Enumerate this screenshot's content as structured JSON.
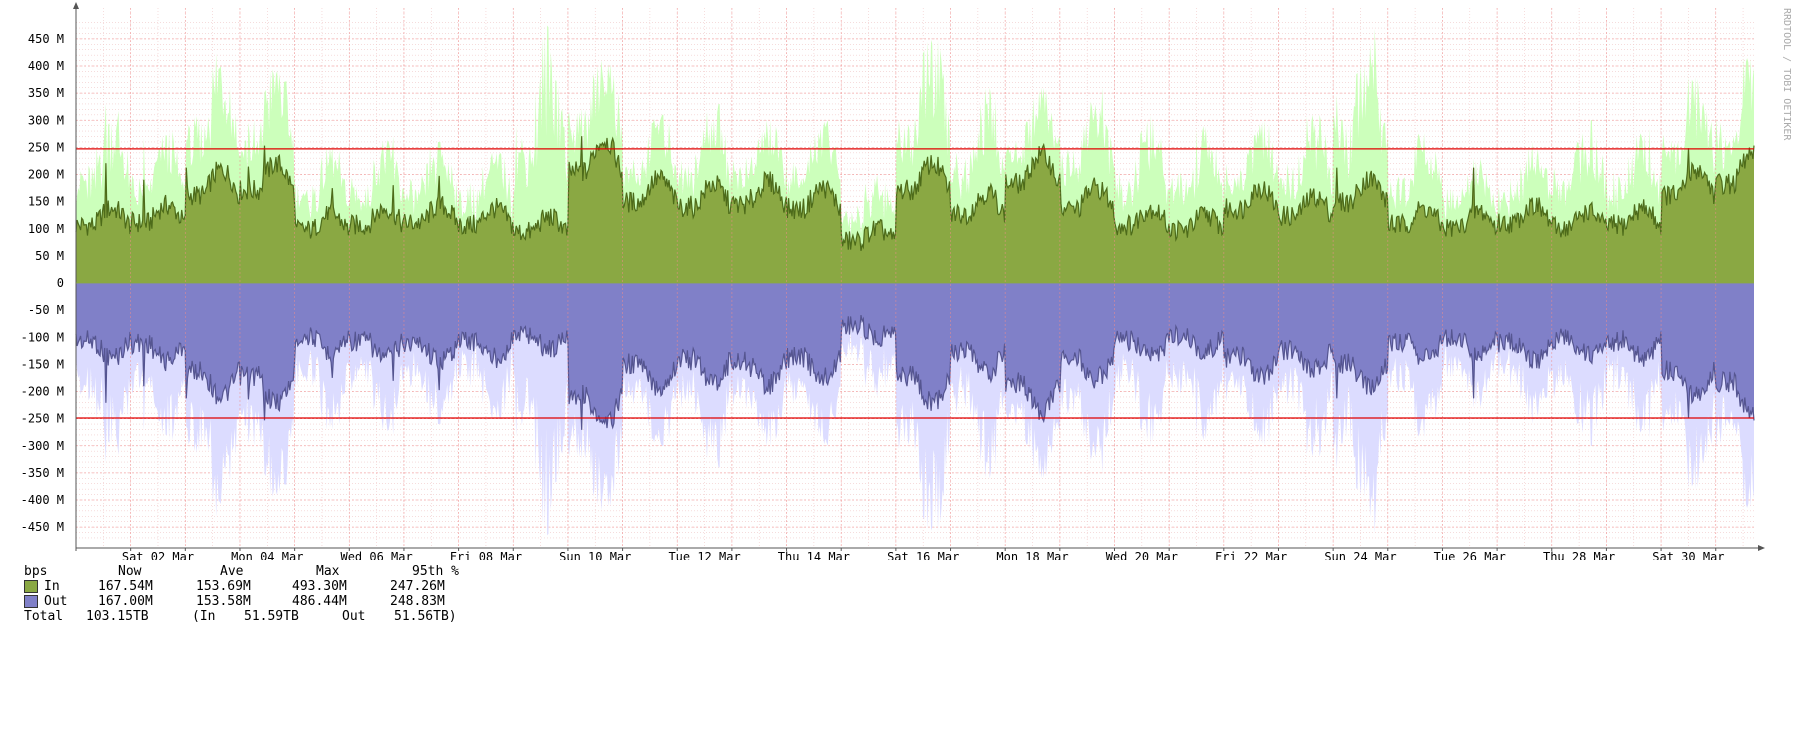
{
  "watermark": "RRDTOOL / TOBI OETIKER",
  "chart_data": {
    "type": "area",
    "unit": "bps",
    "ylim": [
      -480,
      490
    ],
    "yticks": [
      "450 M",
      "400 M",
      "350 M",
      "300 M",
      "250 M",
      "200 M",
      "150 M",
      "100 M",
      "50 M",
      "0",
      "-50 M",
      "-100 M",
      "-150 M",
      "-200 M",
      "-250 M",
      "-300 M",
      "-350 M",
      "-400 M",
      "-450 M"
    ],
    "ytick_values": [
      450,
      400,
      350,
      300,
      250,
      200,
      150,
      100,
      50,
      0,
      -50,
      -100,
      -150,
      -200,
      -250,
      -300,
      -350,
      -400,
      -450
    ],
    "xlabels": [
      "Sat 02 Mar",
      "Mon 04 Mar",
      "Wed 06 Mar",
      "Fri 08 Mar",
      "Sun 10 Mar",
      "Tue 12 Mar",
      "Thu 14 Mar",
      "Sat 16 Mar",
      "Mon 18 Mar",
      "Wed 20 Mar",
      "Fri 22 Mar",
      "Sun 24 Mar",
      "Tue 26 Mar",
      "Thu 28 Mar",
      "Sat 30 Mar"
    ],
    "x_day_start": 1,
    "x_day_end": 31.7,
    "threshold_lines": [
      247.26,
      -248.83
    ],
    "series": [
      {
        "name": "In",
        "color": "#8aa843",
        "line_color": "#4d6b1a",
        "max_color": "#ccffbb",
        "daily_avg": [
          125,
          130,
          190,
          200,
          115,
          125,
          130,
          125,
          110,
          240,
          175,
          165,
          170,
          160,
          90,
          200,
          150,
          215,
          160,
          125,
          115,
          160,
          145,
          175,
          125,
          120,
          130,
          120,
          125,
          190,
          215
        ],
        "daily_peak": [
          330,
          280,
          440,
          410,
          250,
          270,
          260,
          240,
          490,
          430,
          310,
          330,
          300,
          300,
          200,
          450,
          360,
          360,
          360,
          310,
          290,
          300,
          310,
          490,
          290,
          230,
          260,
          300,
          290,
          380,
          420
        ]
      },
      {
        "name": "Out",
        "color": "#8080c8",
        "line_color": "#555590",
        "max_color": "#dcdcff",
        "daily_avg": [
          125,
          130,
          190,
          200,
          115,
          125,
          130,
          125,
          110,
          240,
          175,
          165,
          170,
          160,
          90,
          200,
          150,
          215,
          160,
          125,
          115,
          160,
          145,
          175,
          125,
          120,
          130,
          120,
          125,
          190,
          215
        ],
        "daily_peak": [
          330,
          290,
          450,
          410,
          270,
          280,
          260,
          250,
          480,
          440,
          300,
          340,
          300,
          300,
          210,
          460,
          360,
          360,
          350,
          300,
          290,
          300,
          320,
          480,
          300,
          230,
          260,
          300,
          290,
          380,
          420
        ]
      }
    ]
  },
  "legend": {
    "header": {
      "label": "bps",
      "now": "Now",
      "ave": "Ave",
      "max": "Max",
      "pct": "95th %"
    },
    "rows": [
      {
        "label": "In",
        "color": "#8aa843",
        "now": "167.54M",
        "ave": "153.69M",
        "max": "493.30M",
        "pct": "247.26M"
      },
      {
        "label": "Out",
        "color": "#8080c8",
        "now": "167.00M",
        "ave": "153.58M",
        "max": "486.44M",
        "pct": "248.83M"
      }
    ],
    "total": {
      "label": "Total",
      "value": "103.15TB",
      "in_label": "(In",
      "in_value": "51.59TB",
      "out_label": "Out",
      "out_value": "51.56TB)"
    }
  }
}
